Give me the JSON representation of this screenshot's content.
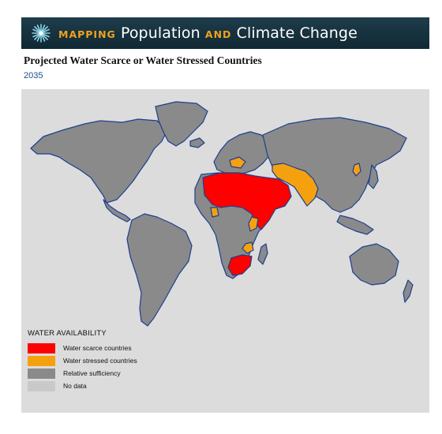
{
  "header": {
    "title_mapping": "MAPPING",
    "title_part1": "Population",
    "title_and": "AND",
    "title_part2": "Climate Change",
    "logo_icon": "compass-star-icon"
  },
  "map_title": "Projected Water Scarce or Water Stressed Countries",
  "year": "2035",
  "legend": {
    "title": "WATER AVAILABILITY",
    "items": [
      {
        "label": "Water scarce countries",
        "color": "#ff0000"
      },
      {
        "label": "Water stressed countries",
        "color": "#f5a10f"
      },
      {
        "label": "Relative sufficiency",
        "color": "#8a8a8a"
      },
      {
        "label": "No data",
        "color": "#c9c9c9"
      }
    ]
  },
  "colors": {
    "ocean": "#dcdcdc",
    "land": "#8a8a8a",
    "coast": "#1c3f8f",
    "scarce": "#ff0000",
    "stressed": "#f5a10f",
    "banner": "#16313e",
    "banner_accent": "#f0a11d"
  }
}
